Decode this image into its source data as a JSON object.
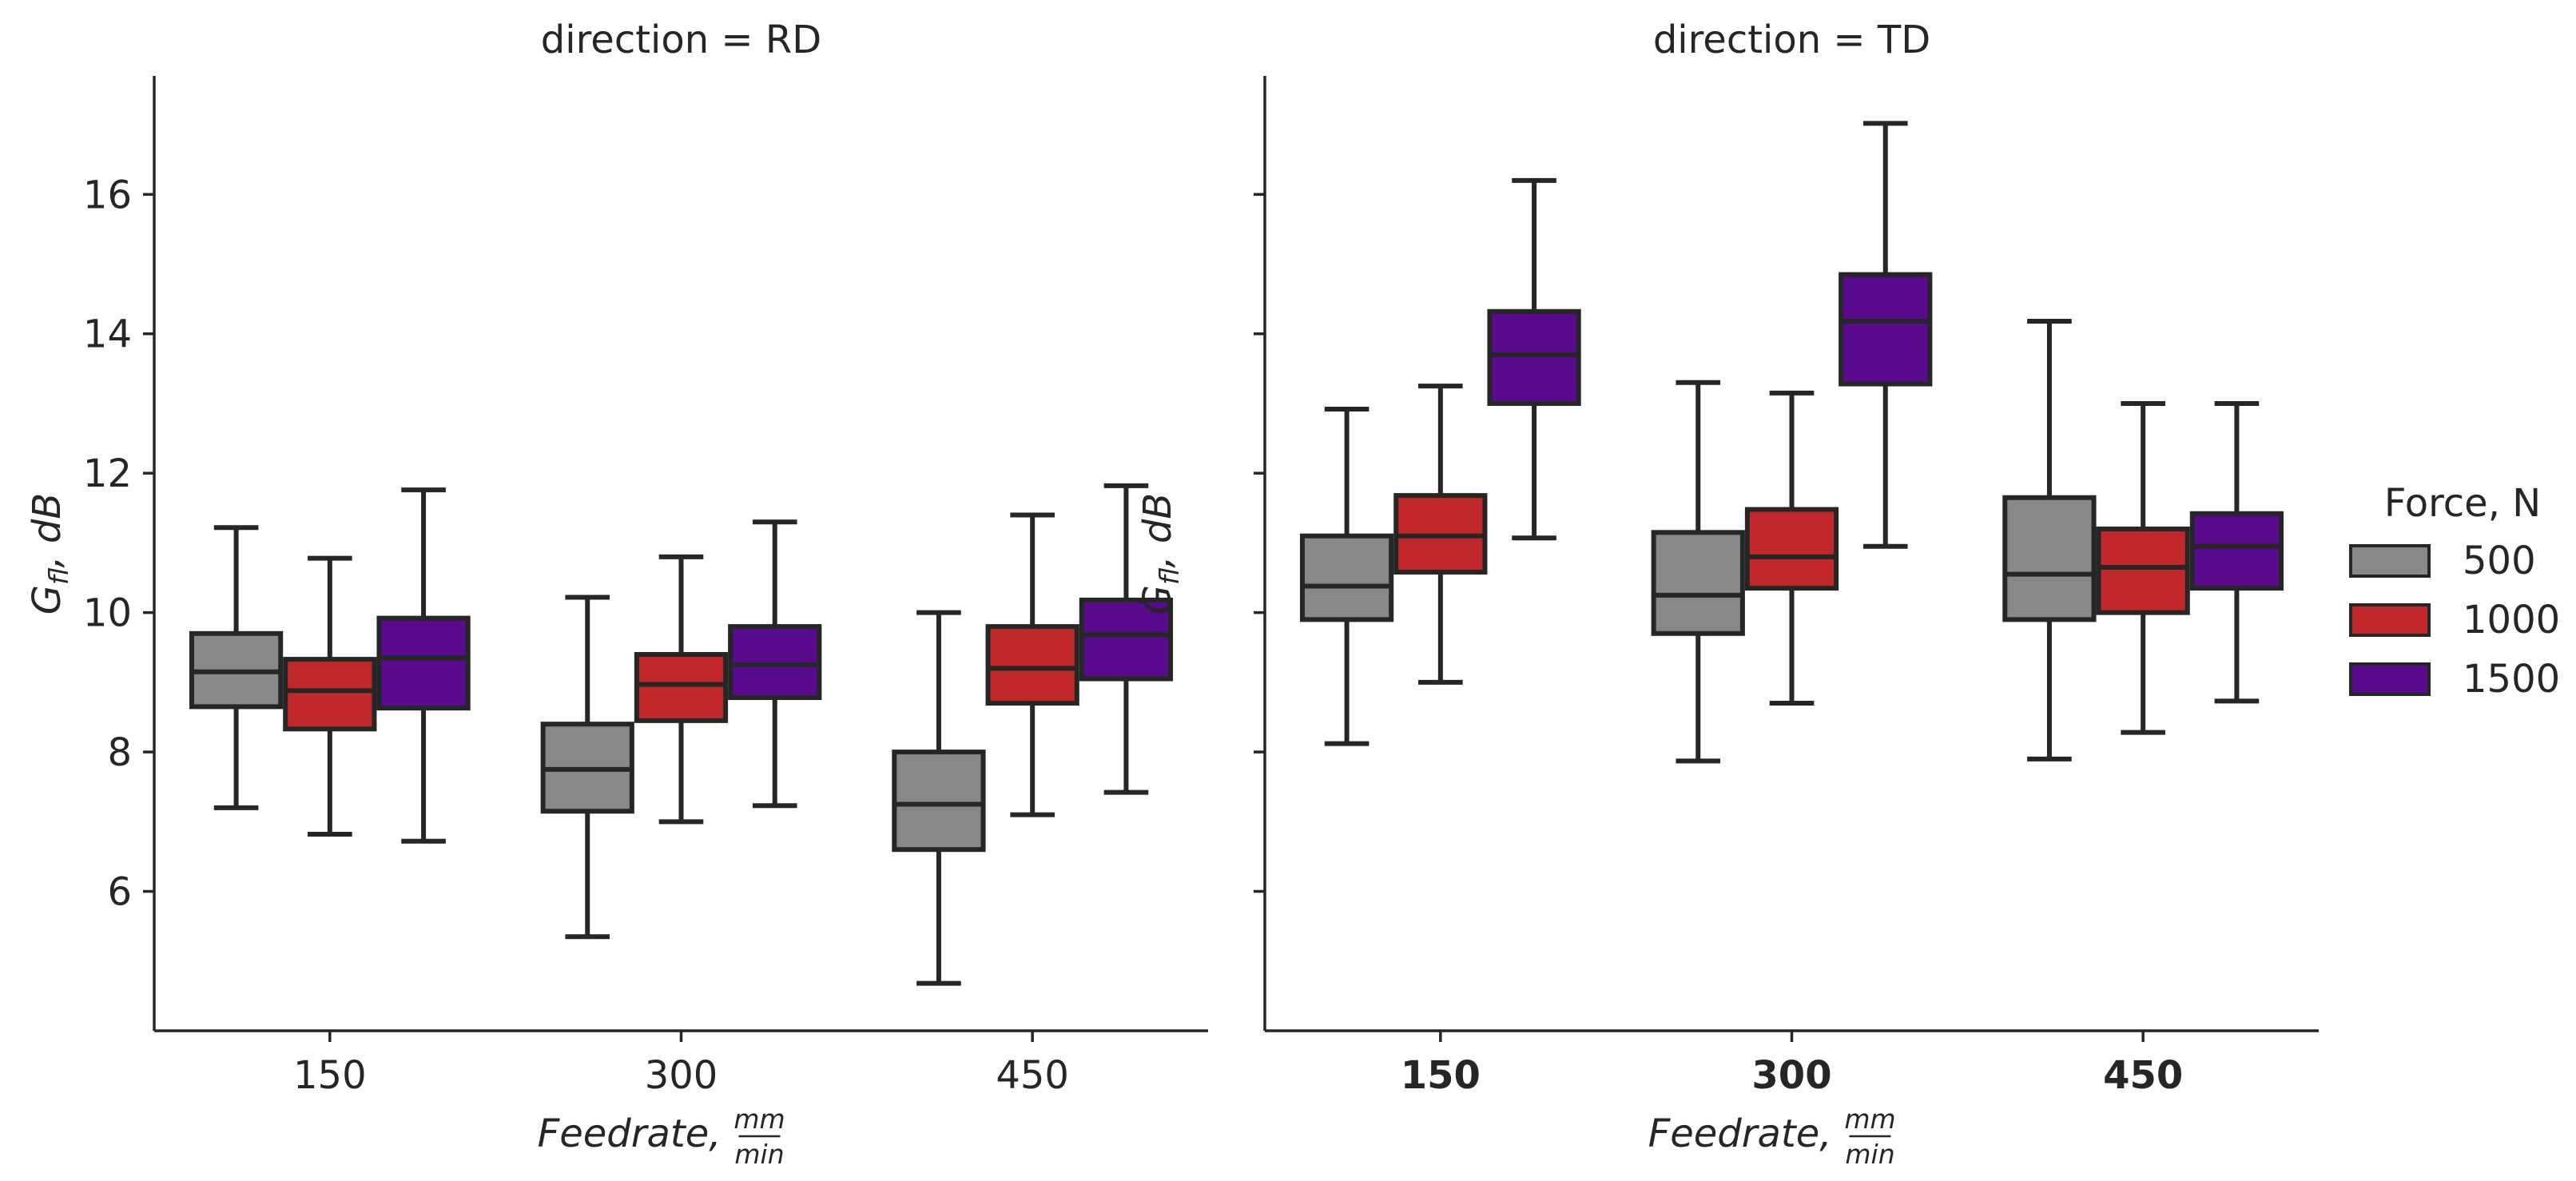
{
  "chart_data": {
    "type": "boxplot",
    "legend": {
      "title": "Force, N",
      "placement": "right",
      "entries": [
        {
          "label": "500",
          "color": "#888888"
        },
        {
          "label": "1000",
          "color": "#c0282c"
        },
        {
          "label": "1500",
          "color": "#5a0a8c"
        }
      ]
    },
    "panels": [
      {
        "title": "direction = RD",
        "xlabel_main": "Feedrate,",
        "xlabel_num": "mm",
        "xlabel_den": "min",
        "ylabel_main": "G",
        "ylabel_sub": "fl",
        "ylabel_tail": ", dB",
        "ylim": [
          4.0,
          17.7
        ],
        "yticks": [
          {
            "value": 6,
            "label": "6"
          },
          {
            "value": 8,
            "label": "8"
          },
          {
            "value": 10,
            "label": "10"
          },
          {
            "value": 12,
            "label": "12"
          },
          {
            "value": 14,
            "label": "14"
          },
          {
            "value": 16,
            "label": "16"
          }
        ],
        "show_ytick_labels": true,
        "bold_xticks": false,
        "categories": [
          "150",
          "300",
          "450"
        ],
        "series": [
          {
            "name": "500",
            "boxes": [
              {
                "whisker_low": 7.2,
                "q1": 8.65,
                "median": 9.15,
                "q3": 9.7,
                "whisker_high": 11.22
              },
              {
                "whisker_low": 5.35,
                "q1": 7.15,
                "median": 7.75,
                "q3": 8.4,
                "whisker_high": 10.22
              },
              {
                "whisker_low": 4.68,
                "q1": 6.6,
                "median": 7.25,
                "q3": 8.0,
                "whisker_high": 10.0
              }
            ]
          },
          {
            "name": "1000",
            "boxes": [
              {
                "whisker_low": 6.82,
                "q1": 8.33,
                "median": 8.88,
                "q3": 9.33,
                "whisker_high": 10.78
              },
              {
                "whisker_low": 7.0,
                "q1": 8.45,
                "median": 8.97,
                "q3": 9.4,
                "whisker_high": 10.8
              },
              {
                "whisker_low": 7.1,
                "q1": 8.7,
                "median": 9.2,
                "q3": 9.8,
                "whisker_high": 11.4
              }
            ]
          },
          {
            "name": "1500",
            "boxes": [
              {
                "whisker_low": 6.72,
                "q1": 8.63,
                "median": 9.35,
                "q3": 9.92,
                "whisker_high": 11.76
              },
              {
                "whisker_low": 7.23,
                "q1": 8.78,
                "median": 9.25,
                "q3": 9.8,
                "whisker_high": 11.3
              },
              {
                "whisker_low": 7.42,
                "q1": 9.05,
                "median": 9.68,
                "q3": 10.18,
                "whisker_high": 11.82
              }
            ]
          }
        ]
      },
      {
        "title": "direction = TD",
        "xlabel_main": "Feedrate,",
        "xlabel_num": "mm",
        "xlabel_den": "min",
        "ylabel_main": "G",
        "ylabel_sub": "fl",
        "ylabel_tail": ", dB",
        "ylim": [
          4.0,
          17.7
        ],
        "yticks": [
          {
            "value": 6,
            "label": ""
          },
          {
            "value": 8,
            "label": ""
          },
          {
            "value": 10,
            "label": ""
          },
          {
            "value": 12,
            "label": ""
          },
          {
            "value": 14,
            "label": ""
          },
          {
            "value": 16,
            "label": ""
          }
        ],
        "show_ytick_labels": false,
        "bold_xticks": true,
        "categories": [
          "150",
          "300",
          "450"
        ],
        "series": [
          {
            "name": "500",
            "boxes": [
              {
                "whisker_low": 8.12,
                "q1": 9.9,
                "median": 10.38,
                "q3": 11.1,
                "whisker_high": 12.92
              },
              {
                "whisker_low": 7.87,
                "q1": 9.7,
                "median": 10.25,
                "q3": 11.15,
                "whisker_high": 13.3
              },
              {
                "whisker_low": 7.9,
                "q1": 9.9,
                "median": 10.55,
                "q3": 11.65,
                "whisker_high": 14.18
              }
            ]
          },
          {
            "name": "1000",
            "boxes": [
              {
                "whisker_low": 9.0,
                "q1": 10.58,
                "median": 11.1,
                "q3": 11.68,
                "whisker_high": 13.25
              },
              {
                "whisker_low": 8.7,
                "q1": 10.35,
                "median": 10.8,
                "q3": 11.48,
                "whisker_high": 13.15
              },
              {
                "whisker_low": 8.28,
                "q1": 10.0,
                "median": 10.65,
                "q3": 11.2,
                "whisker_high": 13.0
              }
            ]
          },
          {
            "name": "1500",
            "boxes": [
              {
                "whisker_low": 11.07,
                "q1": 13.0,
                "median": 13.7,
                "q3": 14.32,
                "whisker_high": 16.2
              },
              {
                "whisker_low": 10.95,
                "q1": 13.28,
                "median": 14.18,
                "q3": 14.85,
                "whisker_high": 17.02
              },
              {
                "whisker_low": 8.73,
                "q1": 10.35,
                "median": 10.95,
                "q3": 11.42,
                "whisker_high": 13.0
              }
            ]
          }
        ]
      }
    ]
  }
}
